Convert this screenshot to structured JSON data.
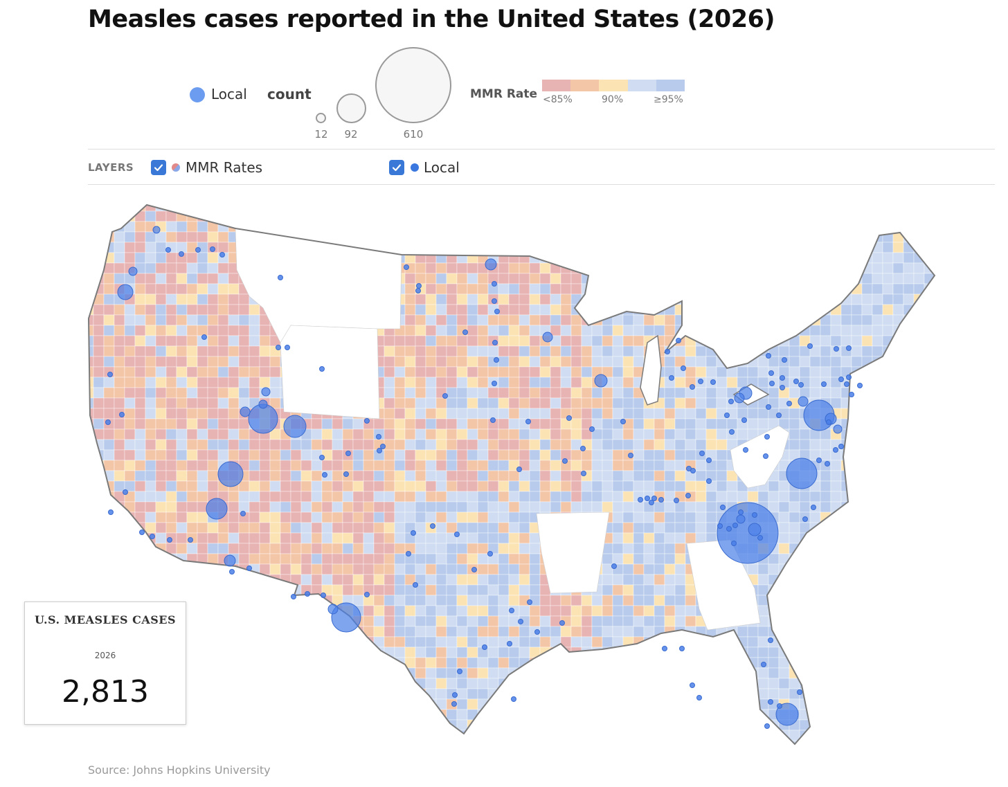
{
  "title": "Measles cases reported in the United States (2026)",
  "legend": {
    "local_label": "Local",
    "count_label": "count",
    "size_values": [
      "12",
      "92",
      "610"
    ],
    "mmr_label": "MMR Rate",
    "mmr_ticks": [
      "<85%",
      "90%",
      "≥95%"
    ],
    "mmr_colors": [
      "#e8b3b3",
      "#f4c6a8",
      "#fbe3b4",
      "#cfdcf2",
      "#b8cbec"
    ],
    "local_color": "#6b9cf0"
  },
  "layers": {
    "label": "LAYERS",
    "items": [
      {
        "label": "MMR Rates",
        "checked": true
      },
      {
        "label": "Local",
        "checked": true
      }
    ]
  },
  "totals": {
    "title": "U.S. MEASLES CASES",
    "year": "2026",
    "value": "2,813"
  },
  "source": "Source: Johns Hopkins University"
}
